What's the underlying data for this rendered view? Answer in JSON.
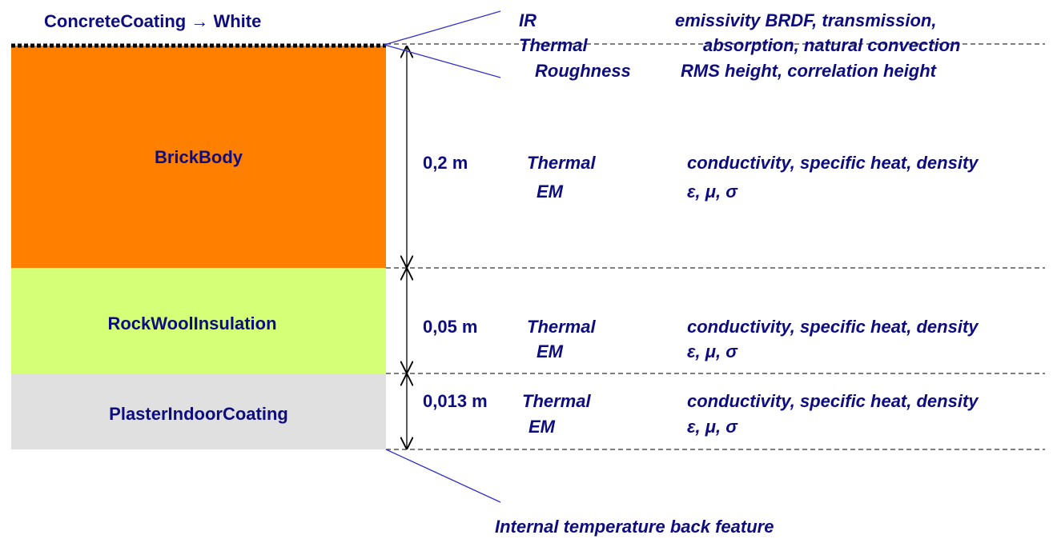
{
  "coating": {
    "title": "ConcreteCoating → White",
    "properties": [
      {
        "domain": "IR",
        "params": "emissivity BRDF, transmission,"
      },
      {
        "domain": "Thermal",
        "params": "absorption, natural convection"
      },
      {
        "domain": "Roughness",
        "params": "RMS height, correlation height"
      }
    ]
  },
  "layers": [
    {
      "name": "BrickBody",
      "thickness": "0,2 m",
      "properties": [
        {
          "domain": "Thermal",
          "params": "conductivity, specific heat, density"
        },
        {
          "domain": "EM",
          "params": "ε, μ, σ"
        }
      ]
    },
    {
      "name": "RockWoolInsulation",
      "thickness": "0,05 m",
      "properties": [
        {
          "domain": "Thermal",
          "params": "conductivity, specific heat, density"
        },
        {
          "domain": "EM",
          "params": "ε, μ, σ"
        }
      ]
    },
    {
      "name": "PlasterIndoorCoating",
      "thickness": "0,013 m",
      "properties": [
        {
          "domain": "Thermal",
          "params": "conductivity, specific heat, density"
        },
        {
          "domain": "EM",
          "params": "ε, μ, σ"
        }
      ]
    }
  ],
  "back_feature": "Internal temperature back feature"
}
